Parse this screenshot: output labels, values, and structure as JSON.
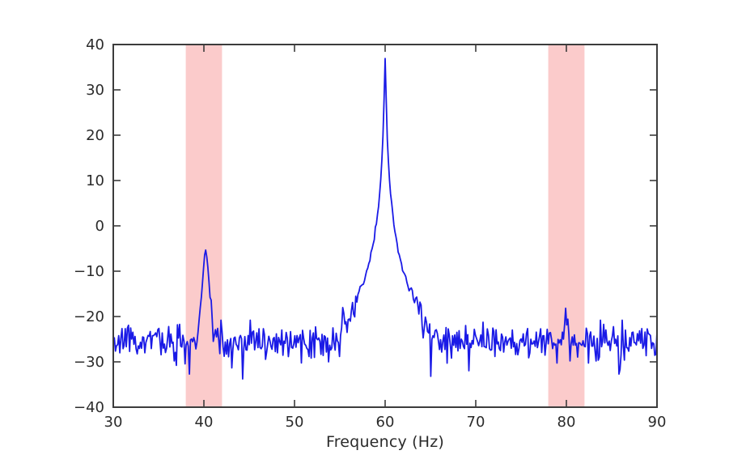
{
  "figure": {
    "background": "#ffffff",
    "axis_color": "#3c3c3c",
    "text_color": "#2b2b2b"
  },
  "chart_data": {
    "type": "line",
    "title": "",
    "xlabel": "Frequency (Hz)",
    "ylabel": "",
    "xlim": [
      30,
      90
    ],
    "ylim": [
      -40,
      40
    ],
    "grid": false,
    "legend": null,
    "xticks": {
      "values": [
        30,
        40,
        50,
        60,
        70,
        80,
        90
      ],
      "labels": [
        "30",
        "40",
        "50",
        "60",
        "70",
        "80",
        "90"
      ]
    },
    "yticks": {
      "values": [
        40,
        30,
        20,
        10,
        0,
        -10,
        -20,
        -30,
        -40
      ],
      "labels": [
        "40",
        "30",
        "20",
        "10",
        "0",
        "−10",
        "−20",
        "−30",
        "−40"
      ]
    },
    "line_color": "#1a1ae6",
    "line_width": 1.8,
    "band_color": "#fbcbcb",
    "highlight_bands": [
      {
        "name": "band-around-40hz",
        "from_hz": 38,
        "to_hz": 42
      },
      {
        "name": "band-around-80hz",
        "from_hz": 78,
        "to_hz": 82
      }
    ],
    "peaks": [
      {
        "frequency_hz": 40.2,
        "level_db": -5
      },
      {
        "frequency_hz": 60.0,
        "level_db": 37
      },
      {
        "frequency_hz": 80.0,
        "level_db": -20
      }
    ],
    "noise_floor_db": -25.3,
    "noise_std_db": 2.0,
    "key_points": [
      [
        30,
        -25
      ],
      [
        35,
        -25
      ],
      [
        38,
        -26
      ],
      [
        40.2,
        -5
      ],
      [
        42,
        -26
      ],
      [
        45,
        -25
      ],
      [
        50,
        -24
      ],
      [
        53,
        -23
      ],
      [
        55,
        -21
      ],
      [
        57,
        -17
      ],
      [
        58,
        -13
      ],
      [
        59,
        -3
      ],
      [
        60,
        37
      ],
      [
        61,
        -4
      ],
      [
        62,
        -13
      ],
      [
        63,
        -17
      ],
      [
        65,
        -21
      ],
      [
        68,
        -23
      ],
      [
        70,
        -24
      ],
      [
        75,
        -25
      ],
      [
        78,
        -26
      ],
      [
        80,
        -20
      ],
      [
        80.7,
        -34
      ],
      [
        82,
        -26
      ],
      [
        85,
        -27
      ],
      [
        88,
        -26
      ],
      [
        90,
        -27
      ]
    ],
    "synth": {
      "seed": 20,
      "freq_step_hz": 0.12,
      "components": [
        {
          "f0": 60.0,
          "peak_db": 37,
          "width_hz": 0.076,
          "slope": 16.5
        },
        {
          "f0": 40.2,
          "peak_db": -5,
          "width_hz": 0.3,
          "slope": 20
        },
        {
          "f0": 80.0,
          "peak_db": -20,
          "width_hz": 0.35,
          "slope": 12
        }
      ]
    }
  }
}
